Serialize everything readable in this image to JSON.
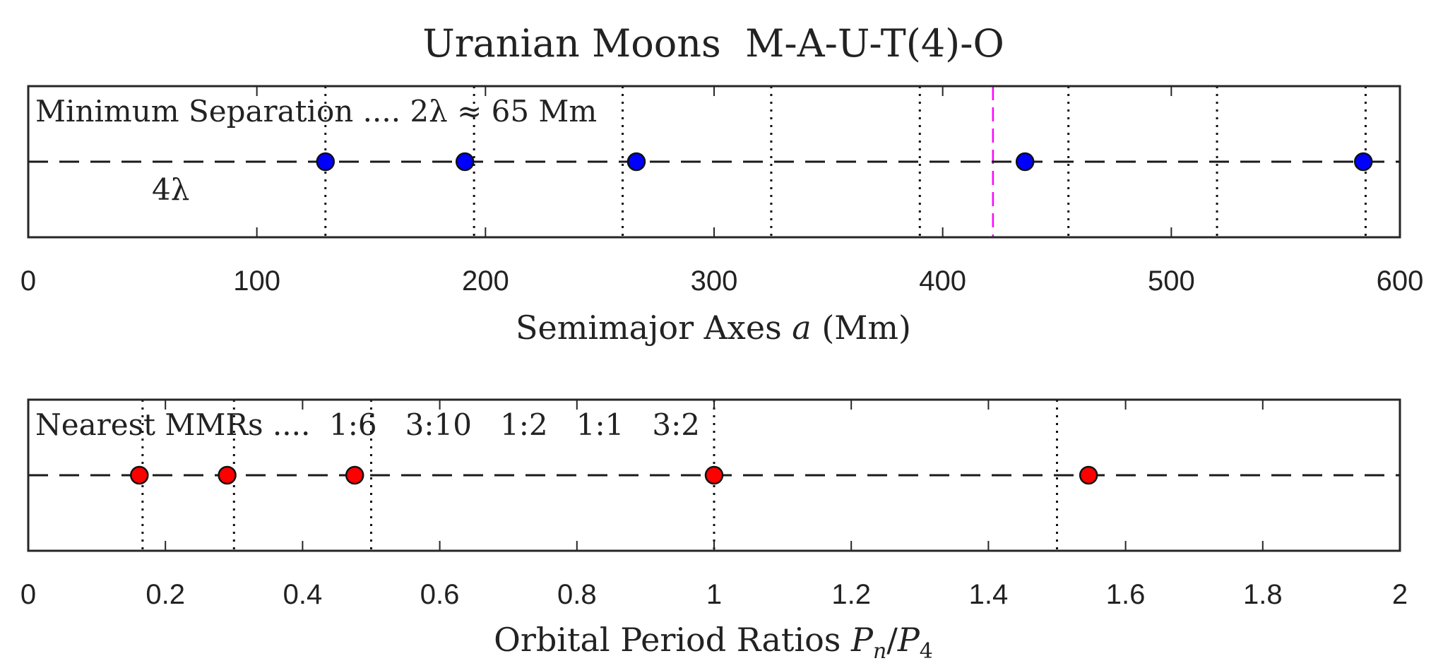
{
  "chart_data": [
    {
      "type": "scatter",
      "title": "Uranian Moons  M-A-U-T(4)-O",
      "xlabel": "Semimajor Axes",
      "xlabel_var": "a",
      "xlabel_unit": "(Mm)",
      "xlim": [
        0,
        600
      ],
      "xticks": [
        0,
        100,
        200,
        300,
        400,
        500,
        600
      ],
      "annotation": "Minimum Separation .... 2λ ≈ 65 Mm",
      "label_4lambda": "4λ",
      "points": [
        130,
        191,
        266,
        436,
        584
      ],
      "marker_color": "#0000ff",
      "reference_lines": [
        130,
        195,
        260,
        325,
        390,
        455,
        520,
        585
      ],
      "highlight_line": 422,
      "highlight_color": "#ff00ff"
    },
    {
      "type": "scatter",
      "xlabel": "Orbital Period Ratios",
      "xlabel_var": "P",
      "xlabel_sub_n": "n",
      "xlabel_sep": "/",
      "xlabel_sub_4": "4",
      "xlim": [
        0,
        2
      ],
      "xticks": [
        "0",
        "0.2",
        "0.4",
        "0.6",
        "0.8",
        "1",
        "1.2",
        "1.4",
        "1.6",
        "1.8",
        "2"
      ],
      "annotation_prefix": "Nearest MMRs ....",
      "mmr_labels": [
        "1:6",
        "3:10",
        "1:2",
        "1:1",
        "3:2"
      ],
      "points": [
        0.162,
        0.29,
        0.476,
        1.0,
        1.546
      ],
      "marker_color": "#ff0000",
      "reference_lines": [
        0.1667,
        0.3,
        0.5,
        1.0,
        1.5
      ]
    }
  ]
}
